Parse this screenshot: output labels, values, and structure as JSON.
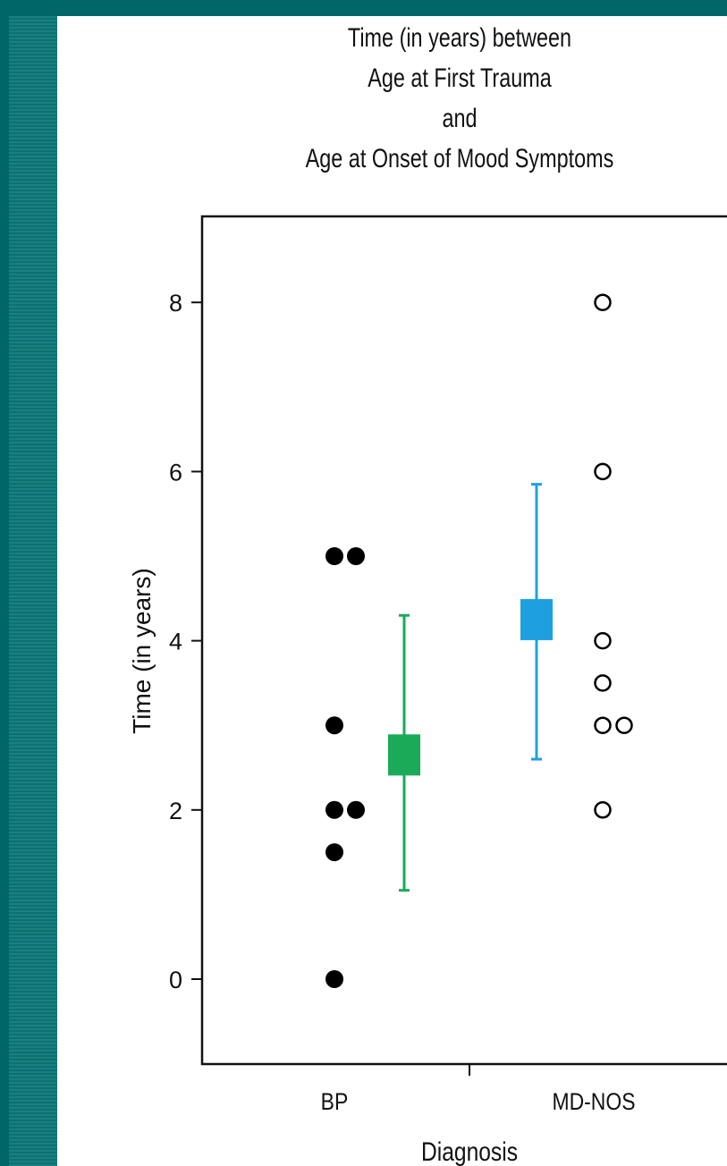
{
  "chart_data": {
    "type": "scatter",
    "title_lines": [
      "Time (in years) between",
      "Age at First Trauma",
      "and",
      "Age at Onset of Mood Symptoms"
    ],
    "xlabel": "Diagnosis",
    "ylabel": "Time (in years)",
    "categories": [
      "BP",
      "MD-NOS"
    ],
    "ylim": [
      -1,
      9
    ],
    "yticks": [
      0,
      2,
      4,
      6,
      8
    ],
    "grid": false,
    "series": [
      {
        "category": "BP",
        "marker": "filled-circle",
        "color": "#000000",
        "points": [
          {
            "offset": 0,
            "y": 5
          },
          {
            "offset": 1,
            "y": 5
          },
          {
            "offset": 0,
            "y": 3
          },
          {
            "offset": 0,
            "y": 2
          },
          {
            "offset": 1,
            "y": 2
          },
          {
            "offset": 0,
            "y": 1.5
          },
          {
            "offset": 0,
            "y": 0
          }
        ],
        "summary": {
          "mean": 2.65,
          "lower": 1.05,
          "upper": 4.3,
          "color": "#1aaa5a"
        }
      },
      {
        "category": "MD-NOS",
        "marker": "open-circle",
        "color": "#000000",
        "points": [
          {
            "offset": 0,
            "y": 8
          },
          {
            "offset": 0,
            "y": 6
          },
          {
            "offset": 0,
            "y": 4
          },
          {
            "offset": 0,
            "y": 3.5
          },
          {
            "offset": 0,
            "y": 3
          },
          {
            "offset": 1,
            "y": 3
          },
          {
            "offset": 0,
            "y": 2
          }
        ],
        "summary": {
          "mean": 4.25,
          "lower": 2.6,
          "upper": 5.85,
          "color": "#1ea0e0"
        }
      }
    ]
  }
}
